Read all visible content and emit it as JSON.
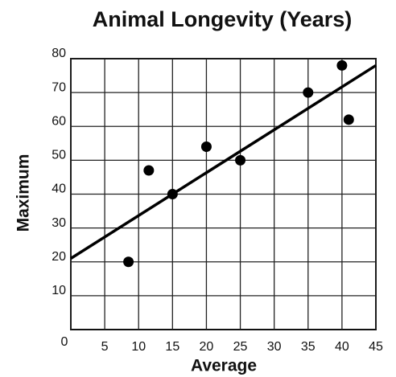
{
  "chart_data": {
    "type": "scatter",
    "title": "Animal Longevity (Years)",
    "x_label": "Average",
    "y_label": "Maximum",
    "x": [
      8.5,
      11.5,
      15,
      20,
      25,
      35,
      40,
      41
    ],
    "values": [
      20,
      47,
      40,
      54,
      50,
      70,
      78,
      62
    ],
    "color": "#000000",
    "trendline": {
      "x": [
        0,
        45
      ],
      "y": [
        21,
        78
      ],
      "color": "#000000"
    },
    "xlim": [
      0,
      45
    ],
    "xticks": [
      0,
      5,
      10,
      15,
      20,
      25,
      30,
      35,
      40,
      45
    ],
    "ylim": [
      0,
      80
    ],
    "yticks": [
      10,
      20,
      30,
      40,
      50,
      60,
      70,
      80
    ],
    "grid": true
  }
}
